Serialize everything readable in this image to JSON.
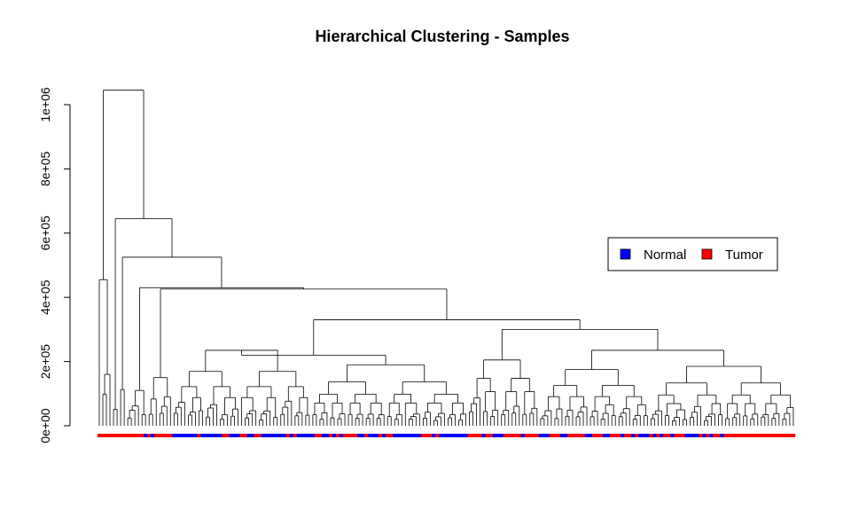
{
  "chart_data": {
    "type": "dendrogram",
    "title": "Hierarchical Clustering - Samples",
    "xlabel": "",
    "ylabel": "",
    "ylim": [
      0,
      1050000
    ],
    "y_ticks": [
      0,
      200000,
      400000,
      600000,
      800000,
      1000000
    ],
    "y_tick_labels": [
      "0e+00",
      "2e+05",
      "4e+05",
      "6e+05",
      "8e+05",
      "1e+06"
    ],
    "n_leaves": 196,
    "major_merge_heights": [
      1045000,
      645000,
      525000,
      430000,
      330000,
      300000,
      275000,
      235000,
      220000,
      205000,
      185000
    ],
    "groups": [
      {
        "name": "Normal",
        "color": "#0000ff"
      },
      {
        "name": "Tumor",
        "color": "#ff0000"
      }
    ],
    "legend": {
      "position": "right",
      "entries": [
        "Normal",
        "Tumor"
      ]
    },
    "grid": false
  }
}
